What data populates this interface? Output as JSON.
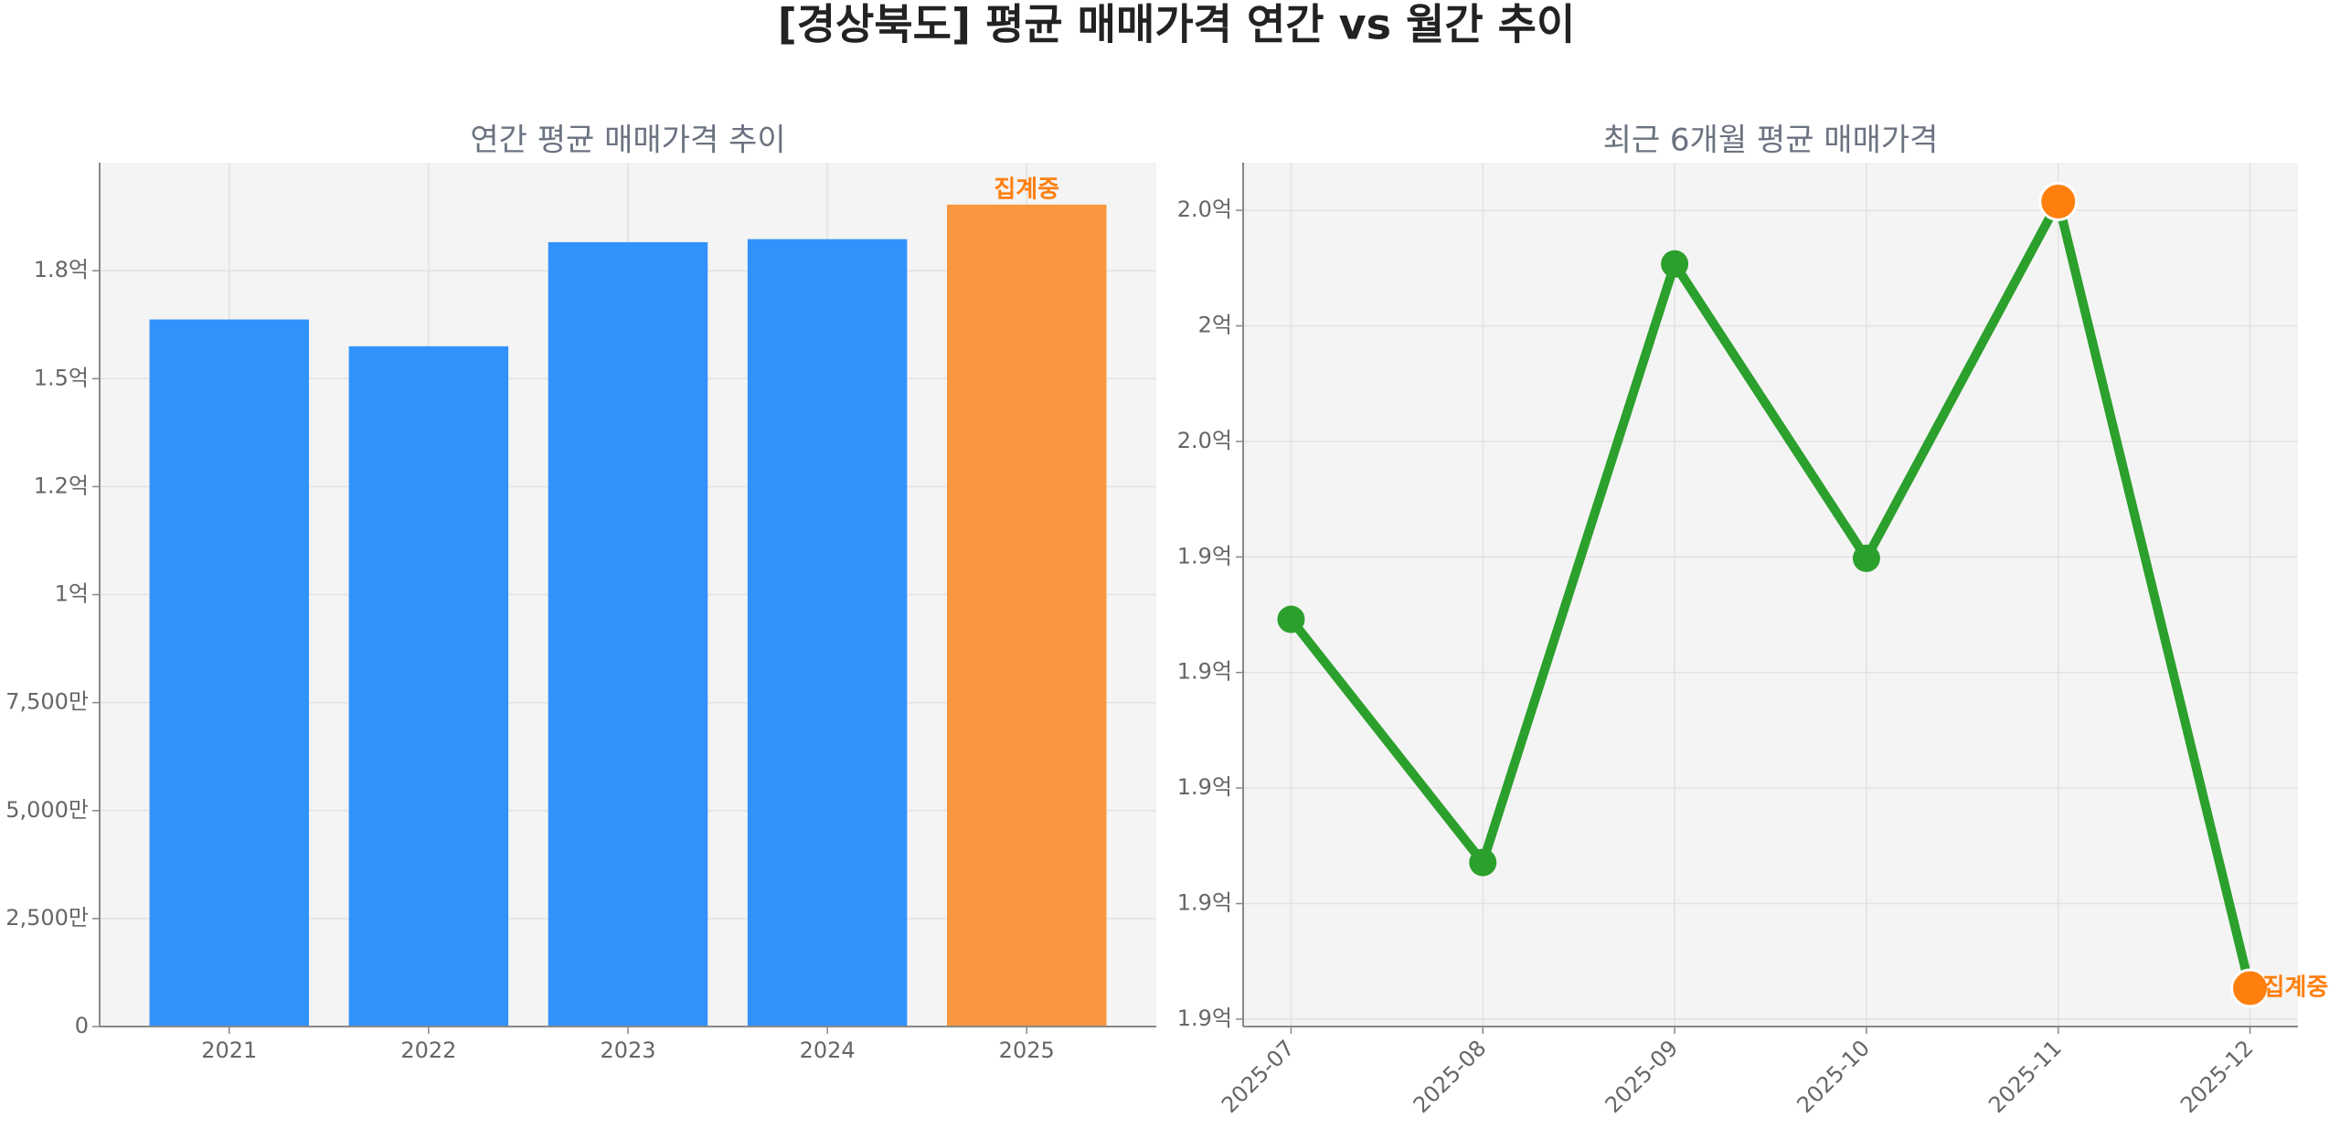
{
  "title": "[경상북도] 평균 매매가격 연간 vs 월간 추이",
  "chart_data": [
    {
      "type": "bar",
      "title": "연간 평균 매매가격 추이",
      "categories": [
        "2021",
        "2022",
        "2023",
        "2024",
        "2025"
      ],
      "values": [
        163700000,
        157500000,
        181600000,
        182300000,
        190300000
      ],
      "colors": [
        "#3192fc",
        "#3192fc",
        "#3192fc",
        "#3192fc",
        "#f9963f"
      ],
      "ylim": [
        0,
        200000000
      ],
      "yticks": [
        0,
        {
          "value": 25000000,
          "label": "2,500만"
        },
        {
          "value": 50000000,
          "label": "5,000만"
        },
        {
          "value": 75000000,
          "label": "7,500만"
        },
        {
          "value": 100000000,
          "label": "1억"
        },
        {
          "value": 125000000,
          "label": "1.2억"
        },
        {
          "value": 150000000,
          "label": "1.5억"
        },
        {
          "value": 175000000,
          "label": "1.8억"
        }
      ],
      "grid": true,
      "annotation": "집계중",
      "annotation_color": "#ff7f0e"
    },
    {
      "type": "line",
      "title": "최근 6개월 평균 매매가격",
      "categories": [
        "2025-07",
        "2025-08",
        "2025-09",
        "2025-10",
        "2025-11",
        "2025-12"
      ],
      "values": [
        193650000,
        188390000,
        201340000,
        194970000,
        202690000,
        185670000
      ],
      "color": "#2ca02c",
      "marker_colors": [
        "#2ca02c",
        "#2ca02c",
        "#2ca02c",
        "#2ca02c",
        "#ff7f0e",
        "#ff7f0e"
      ],
      "ylim": [
        184840000,
        203530000
      ],
      "yticks": [
        {
          "value": 185000000,
          "label": "1.9억"
        },
        {
          "value": 187500000,
          "label": "1.9억"
        },
        {
          "value": 190000000,
          "label": "1.9억"
        },
        {
          "value": 192500000,
          "label": "1.9억"
        },
        {
          "value": 195000000,
          "label": "1.9억"
        },
        {
          "value": 197500000,
          "label": "2.0억"
        },
        {
          "value": 200000000,
          "label": "2억"
        },
        {
          "value": 202500000,
          "label": "2.0억"
        }
      ],
      "grid": true,
      "annotation": "집계중",
      "annotation_color": "#ff7f0e"
    }
  ]
}
